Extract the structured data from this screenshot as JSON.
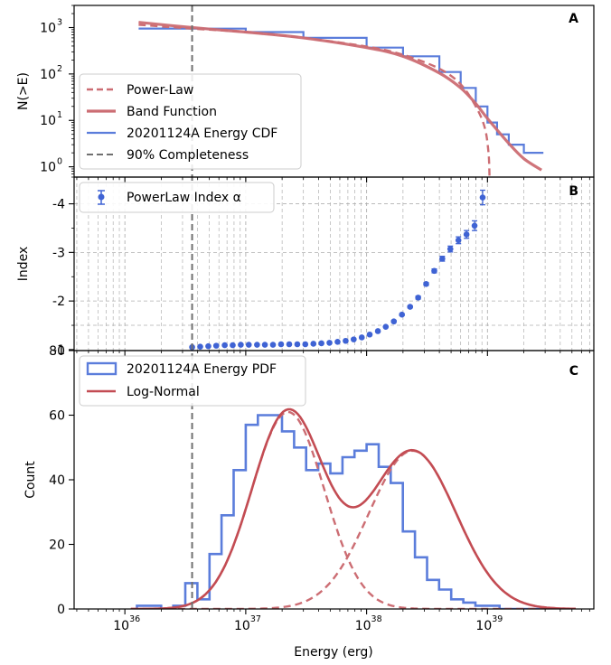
{
  "figure": {
    "xlabel": "Energy (erg)",
    "xscale": "log",
    "xlim_log10": [
      35.58,
      39.88
    ],
    "x_ticks": [
      {
        "value": 1e+36,
        "base": "10",
        "exp": "36"
      },
      {
        "value": 1e+37,
        "base": "10",
        "exp": "37"
      },
      {
        "value": 1e+38,
        "base": "10",
        "exp": "38"
      },
      {
        "value": 1e+39,
        "base": "10",
        "exp": "39"
      }
    ],
    "completeness_energy": 3.6e+36
  },
  "colors": {
    "red": "#cc6d73",
    "red_dark": "#c34c53",
    "blue": "#5b7ddb",
    "blue_dot": "#3f63d4",
    "gray": "#707070",
    "grid": "#b0b0b0"
  },
  "chart_data": [
    {
      "panel": "A",
      "type": "line",
      "yscale": "log",
      "ylabel": "N(>E)",
      "ylim": [
        0.6,
        3000
      ],
      "y_ticks": [
        {
          "value": 1,
          "base": "10",
          "exp": "0"
        },
        {
          "value": 10,
          "base": "10",
          "exp": "1"
        },
        {
          "value": 100,
          "base": "10",
          "exp": "2"
        },
        {
          "value": 1000,
          "base": "10",
          "exp": "3"
        }
      ],
      "legend_position": "lower-left",
      "legend": [
        {
          "label": "Power-Law",
          "style": "dashed-red"
        },
        {
          "label": "Band Function",
          "style": "solid-red"
        },
        {
          "label": "20201124A Energy CDF",
          "style": "solid-blue"
        },
        {
          "label": "90% Completeness",
          "style": "dashed-gray"
        }
      ],
      "series": [
        {
          "name": "20201124A Energy CDF",
          "style": "step",
          "x": [
            1.3e+36,
            3.6e+36,
            1e+37,
            3e+37,
            1e+38,
            2e+38,
            4e+38,
            6e+38,
            8e+38,
            1e+39,
            1.2e+39,
            1.5e+39,
            2e+39,
            2.9e+39
          ],
          "y": [
            950,
            950,
            800,
            600,
            370,
            240,
            110,
            50,
            20,
            9,
            5,
            3,
            2,
            2
          ]
        },
        {
          "name": "Power-Law",
          "style": "dashed",
          "x": [
            1.3e+36,
            3.6e+36,
            1e+37,
            3e+37,
            1e+38,
            2e+38,
            4e+38,
            6e+38,
            8e+38,
            9.5e+38,
            1.02e+39,
            1.04e+39
          ],
          "y": [
            1150,
            950,
            800,
            600,
            390,
            260,
            130,
            60,
            20,
            7,
            2,
            0.6
          ]
        },
        {
          "name": "Band Function",
          "style": "solid",
          "x": [
            1.3e+36,
            3.6e+36,
            1e+37,
            3e+37,
            1e+38,
            2e+38,
            4e+38,
            6e+38,
            8e+38,
            1e+39,
            1.5e+39,
            2e+39,
            2.8e+39
          ],
          "y": [
            1300,
            1000,
            800,
            600,
            370,
            240,
            105,
            50,
            23,
            11,
            3.2,
            1.5,
            0.85
          ]
        }
      ]
    },
    {
      "panel": "B",
      "type": "scatter",
      "ylabel": "Index",
      "y_axis": "inverted",
      "ylim": [
        -0.98,
        -4.55
      ],
      "y_ticks": [
        -1,
        -2,
        -3,
        -4
      ],
      "y_tick_labels": [
        "-1",
        "-2",
        "-3",
        "-4"
      ],
      "grid": true,
      "legend_position": "top-left",
      "legend": [
        {
          "label": "PowerLaw Index α",
          "style": "errorbar-blue"
        }
      ],
      "series": [
        {
          "name": "PowerLaw Index α",
          "x": [
            3.6e+36,
            4.2e+36,
            4.9e+36,
            5.7e+36,
            6.7e+36,
            7.8e+36,
            9.1e+36,
            1.06e+37,
            1.24e+37,
            1.44e+37,
            1.68e+37,
            1.96e+37,
            2.29e+37,
            2.67e+37,
            3.11e+37,
            3.63e+37,
            4.23e+37,
            4.93e+37,
            5.75e+37,
            6.71e+37,
            7.82e+37,
            9.12e+37,
            1.06e+38,
            1.24e+38,
            1.44e+38,
            1.68e+38,
            1.96e+38,
            2.29e+38,
            2.67e+38,
            3.11e+38,
            3.63e+38,
            4.23e+38,
            4.93e+38,
            5.75e+38,
            6.71e+38,
            7.82e+38,
            9.12e+38
          ],
          "y": [
            -1.05,
            -1.06,
            -1.07,
            -1.08,
            -1.09,
            -1.09,
            -1.1,
            -1.1,
            -1.1,
            -1.1,
            -1.1,
            -1.11,
            -1.11,
            -1.11,
            -1.11,
            -1.12,
            -1.13,
            -1.14,
            -1.16,
            -1.18,
            -1.21,
            -1.25,
            -1.31,
            -1.38,
            -1.47,
            -1.58,
            -1.72,
            -1.88,
            -2.07,
            -2.35,
            -2.62,
            -2.87,
            -3.07,
            -3.25,
            -3.37,
            -3.55,
            -4.13
          ],
          "yerr": [
            0.01,
            0.01,
            0.01,
            0.01,
            0.01,
            0.01,
            0.01,
            0.01,
            0.01,
            0.01,
            0.01,
            0.01,
            0.01,
            0.01,
            0.01,
            0.01,
            0.01,
            0.01,
            0.01,
            0.01,
            0.01,
            0.01,
            0.01,
            0.01,
            0.01,
            0.02,
            0.02,
            0.02,
            0.03,
            0.03,
            0.04,
            0.05,
            0.06,
            0.07,
            0.08,
            0.1,
            0.15
          ]
        }
      ]
    },
    {
      "panel": "C",
      "type": "bar",
      "ylabel": "Count",
      "ylim": [
        0,
        80
      ],
      "y_ticks": [
        0,
        20,
        40,
        60,
        80
      ],
      "legend_position": "top-left",
      "legend": [
        {
          "label": "20201124A Energy PDF",
          "style": "step-blue"
        },
        {
          "label": "Log-Normal",
          "style": "solid-red"
        }
      ],
      "histogram": {
        "name": "20201124A Energy PDF",
        "bin_edges_log10": [
          36.1,
          36.2,
          36.3,
          36.4,
          36.5,
          36.6,
          36.7,
          36.8,
          36.9,
          37.0,
          37.1,
          37.2,
          37.3,
          37.4,
          37.5,
          37.6,
          37.7,
          37.8,
          37.9,
          38.0,
          38.1,
          38.2,
          38.3,
          38.4,
          38.5,
          38.6,
          38.7,
          38.8,
          38.9,
          39.0,
          39.1,
          39.2,
          39.3,
          39.4,
          39.5,
          39.6,
          39.7
        ],
        "counts": [
          1,
          1,
          0,
          1,
          8,
          3,
          17,
          29,
          43,
          57,
          60,
          60,
          55,
          50,
          43,
          45,
          42,
          47,
          49,
          51,
          44,
          39,
          24,
          16,
          9,
          6,
          3,
          2,
          1,
          1,
          0,
          0,
          0,
          0,
          0,
          0
        ]
      },
      "lognormal_components": [
        {
          "amplitude": 61,
          "mu_log10": 37.35,
          "sigma_log10": 0.3
        },
        {
          "amplitude": 49,
          "mu_log10": 38.38,
          "sigma_log10": 0.36
        }
      ]
    }
  ],
  "panel_letters": {
    "a": "A",
    "b": "B",
    "c": "C"
  }
}
